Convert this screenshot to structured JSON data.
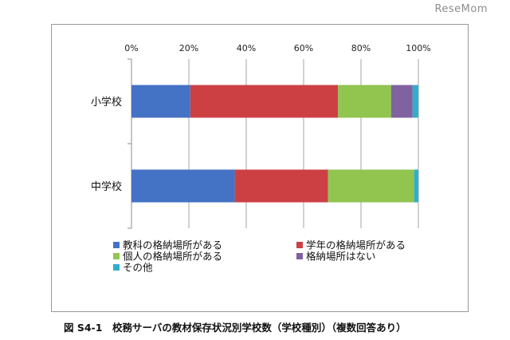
{
  "watermark": "ReseMom",
  "caption": "図 S4-1　校務サーバの教材保存状況別学校数（学校種別）（複数回答あり）",
  "chart_data": {
    "type": "bar",
    "orientation": "horizontal",
    "stacked": true,
    "percent": true,
    "categories": [
      "小学校",
      "中学校"
    ],
    "xlim": [
      0,
      100
    ],
    "x_ticks": [
      "0%",
      "20%",
      "40%",
      "60%",
      "80%",
      "100%"
    ],
    "grid": true,
    "legend_position": "bottom",
    "series": [
      {
        "name": "教科の格納場所がある",
        "color": "#4472c4",
        "values": [
          20.5,
          36.0
        ]
      },
      {
        "name": "学年の格納場所がある",
        "color": "#cc4044",
        "values": [
          51.5,
          32.5
        ]
      },
      {
        "name": "個人の格納場所がある",
        "color": "#92c450",
        "values": [
          18.5,
          30.0
        ]
      },
      {
        "name": "格納場所はない",
        "color": "#8062a0",
        "values": [
          7.5,
          0.0
        ]
      },
      {
        "name": "その他",
        "color": "#31aecb",
        "values": [
          2.0,
          1.5
        ]
      }
    ]
  }
}
